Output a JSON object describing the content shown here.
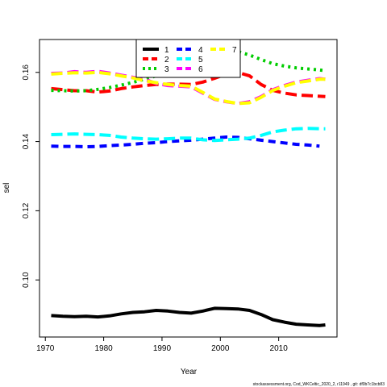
{
  "chart_data": {
    "type": "line",
    "title": "",
    "xlabel": "Year",
    "ylabel": "sel",
    "xlim": [
      1969,
      2020
    ],
    "ylim": [
      0.0835,
      0.1695
    ],
    "x_ticks": [
      1970,
      1980,
      1990,
      2000,
      2010
    ],
    "y_ticks": [
      0.1,
      0.12,
      0.14,
      0.16
    ],
    "x_tick_labels": [
      "1970",
      "1980",
      "1990",
      "2000",
      "2010"
    ],
    "y_tick_labels": [
      "0.10",
      "0.12",
      "0.14",
      "0.16"
    ],
    "legend_position": "top-center",
    "grid": false,
    "footer": "stockassessment.org, Cod_WKCeltic_2020_2, r11949 , git: df0b7c1bcb83",
    "series": [
      {
        "name": "1",
        "color": "#000000",
        "dash": "solid",
        "x": [
          1971,
          1973,
          1975,
          1977,
          1979,
          1981,
          1983,
          1985,
          1987,
          1989,
          1991,
          1993,
          1995,
          1997,
          1999,
          2001,
          2003,
          2005,
          2007,
          2009,
          2011,
          2013,
          2015,
          2017,
          2018
        ],
        "y": [
          0.0897,
          0.0895,
          0.0894,
          0.0895,
          0.0893,
          0.0896,
          0.0902,
          0.0906,
          0.0908,
          0.0912,
          0.091,
          0.0906,
          0.0904,
          0.091,
          0.0918,
          0.0917,
          0.0916,
          0.0912,
          0.09,
          0.0885,
          0.0878,
          0.0872,
          0.087,
          0.0868,
          0.087
        ]
      },
      {
        "name": "2",
        "color": "#ff0000",
        "dash": "long",
        "x": [
          1971,
          1973,
          1975,
          1977,
          1979,
          1981,
          1983,
          1985,
          1987,
          1989,
          1991,
          1993,
          1995,
          1997,
          1999,
          2001,
          2003,
          2005,
          2007,
          2009,
          2011,
          2013,
          2015,
          2017,
          2018
        ],
        "y": [
          0.1553,
          0.155,
          0.1547,
          0.1547,
          0.1543,
          0.1546,
          0.1553,
          0.1558,
          0.1562,
          0.1565,
          0.1566,
          0.1566,
          0.1565,
          0.1572,
          0.1583,
          0.1595,
          0.16,
          0.159,
          0.1565,
          0.1548,
          0.154,
          0.1535,
          0.1533,
          0.1531,
          0.153
        ]
      },
      {
        "name": "3",
        "color": "#00cd00",
        "dash": "dotted",
        "x": [
          1971,
          1973,
          1975,
          1977,
          1979,
          1981,
          1983,
          1985,
          1987,
          1989,
          1991,
          1993,
          1995,
          1997,
          1999,
          2001,
          2003,
          2005,
          2007,
          2009,
          2011,
          2013,
          2015,
          2017,
          2018
        ],
        "y": [
          0.1548,
          0.1547,
          0.1546,
          0.1547,
          0.1551,
          0.1556,
          0.1563,
          0.1571,
          0.158,
          0.159,
          0.16,
          0.1612,
          0.1625,
          0.164,
          0.1653,
          0.166,
          0.166,
          0.165,
          0.1637,
          0.1625,
          0.1618,
          0.1613,
          0.161,
          0.1607,
          0.1605
        ]
      },
      {
        "name": "4",
        "color": "#0000ff",
        "dash": "dashed",
        "x": [
          1971,
          1973,
          1975,
          1977,
          1979,
          1981,
          1983,
          1985,
          1987,
          1989,
          1991,
          1993,
          1995,
          1997,
          1999,
          2001,
          2003,
          2005,
          2007,
          2009,
          2011,
          2013,
          2015,
          2017
        ],
        "y": [
          0.1387,
          0.1386,
          0.1386,
          0.1385,
          0.1386,
          0.1388,
          0.139,
          0.1392,
          0.1395,
          0.1397,
          0.14,
          0.1402,
          0.1404,
          0.1407,
          0.141,
          0.1413,
          0.1412,
          0.1408,
          0.1404,
          0.14,
          0.1396,
          0.1392,
          0.139,
          0.1387
        ]
      },
      {
        "name": "5",
        "color": "#00ffff",
        "dash": "long",
        "x": [
          1971,
          1973,
          1975,
          1977,
          1979,
          1981,
          1983,
          1985,
          1987,
          1989,
          1991,
          1993,
          1995,
          1997,
          1999,
          2001,
          2003,
          2005,
          2007,
          2009,
          2011,
          2013,
          2015,
          2017,
          2018
        ],
        "y": [
          0.142,
          0.1421,
          0.1422,
          0.1421,
          0.142,
          0.1418,
          0.1413,
          0.141,
          0.1408,
          0.1407,
          0.1408,
          0.141,
          0.141,
          0.1405,
          0.1403,
          0.1405,
          0.1407,
          0.141,
          0.1418,
          0.1428,
          0.1433,
          0.1437,
          0.1438,
          0.1437,
          0.1437
        ]
      },
      {
        "name": "6",
        "color": "#ff00ff",
        "dash": "long",
        "x": [
          1971,
          1973,
          1975,
          1977,
          1979,
          1981,
          1983,
          1985,
          1987,
          1989,
          1991,
          1993,
          1995,
          1997,
          1999,
          2001,
          2003,
          2005,
          2007,
          2009,
          2011,
          2013,
          2015,
          2017,
          2018
        ],
        "y": [
          0.1597,
          0.1598,
          0.1602,
          0.16,
          0.1603,
          0.1598,
          0.1592,
          0.1586,
          0.158,
          0.1568,
          0.1562,
          0.156,
          0.1558,
          0.154,
          0.1522,
          0.1515,
          0.151,
          0.1515,
          0.153,
          0.155,
          0.1562,
          0.1572,
          0.1577,
          0.1582,
          0.158
        ]
      },
      {
        "name": "7",
        "color": "#ffff00",
        "dash": "long",
        "x": [
          1971,
          1973,
          1975,
          1977,
          1979,
          1981,
          1983,
          1985,
          1987,
          1989,
          1991,
          1993,
          1995,
          1997,
          1999,
          2001,
          2003,
          2005,
          2007,
          2009,
          2011,
          2013,
          2015,
          2017,
          2018
        ],
        "y": [
          0.1595,
          0.1597,
          0.1599,
          0.1598,
          0.16,
          0.1596,
          0.159,
          0.1584,
          0.1576,
          0.157,
          0.1565,
          0.1562,
          0.156,
          0.1542,
          0.1523,
          0.1516,
          0.151,
          0.1512,
          0.1528,
          0.1548,
          0.156,
          0.157,
          0.1575,
          0.158,
          0.158
        ]
      }
    ]
  }
}
